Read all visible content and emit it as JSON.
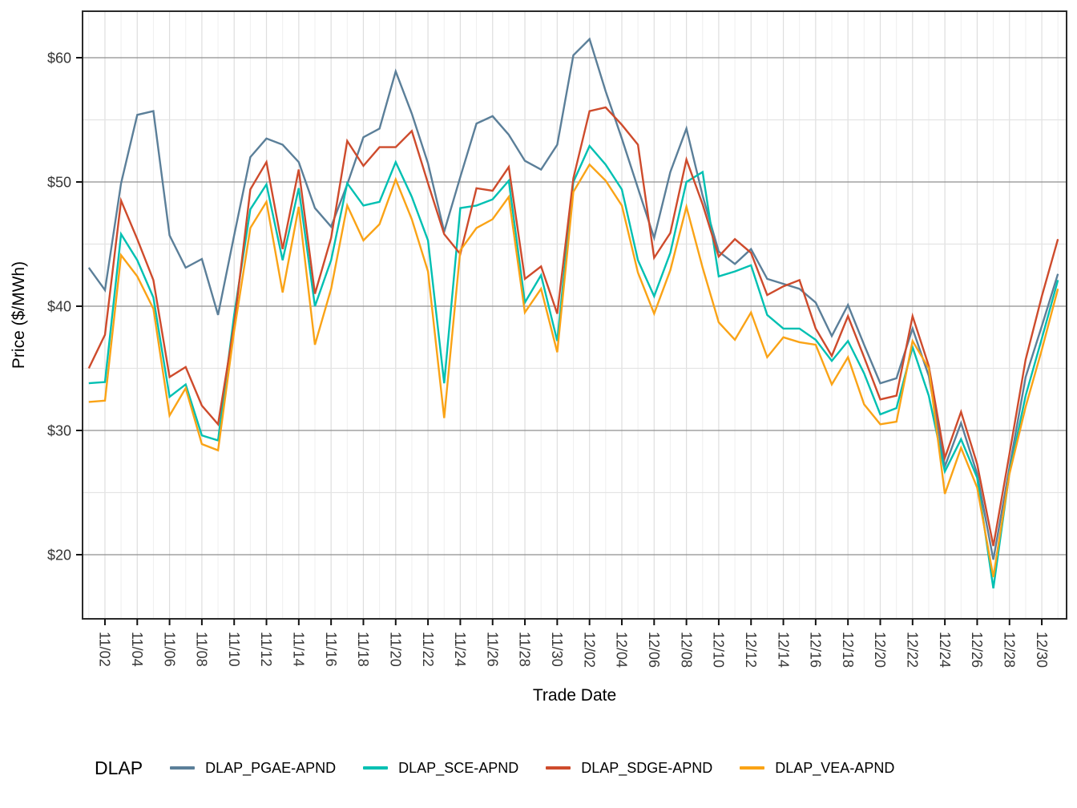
{
  "chart_data": {
    "type": "line",
    "title": "",
    "xlabel": "Trade Date",
    "ylabel": "Price ($/MWh)",
    "grid": "major+minor",
    "ylim": [
      15.3,
      63.7
    ],
    "y_ticks": [
      20,
      30,
      40,
      50,
      60
    ],
    "y_tick_labels": [
      "$20",
      "$30",
      "$40",
      "$50",
      "$60"
    ],
    "y_minor_ticks": [
      25,
      35,
      45,
      55
    ],
    "x": [
      "11/01",
      "11/02",
      "11/03",
      "11/04",
      "11/05",
      "11/06",
      "11/07",
      "11/08",
      "11/09",
      "11/10",
      "11/11",
      "11/12",
      "11/13",
      "11/14",
      "11/15",
      "11/16",
      "11/17",
      "11/18",
      "11/19",
      "11/20",
      "11/21",
      "11/22",
      "11/23",
      "11/24",
      "11/25",
      "11/26",
      "11/27",
      "11/28",
      "11/29",
      "11/30",
      "12/01",
      "12/02",
      "12/03",
      "12/04",
      "12/05",
      "12/06",
      "12/07",
      "12/08",
      "12/09",
      "12/10",
      "12/11",
      "12/12",
      "12/13",
      "12/14",
      "12/15",
      "12/16",
      "12/17",
      "12/18",
      "12/19",
      "12/20",
      "12/21",
      "12/22",
      "12/23",
      "12/24",
      "12/25",
      "12/26",
      "12/27",
      "12/28",
      "12/29",
      "12/30",
      "12/31"
    ],
    "x_tick_labels": [
      "11/02",
      "11/04",
      "11/06",
      "11/08",
      "11/10",
      "11/12",
      "11/14",
      "11/16",
      "11/18",
      "11/20",
      "11/22",
      "11/24",
      "11/26",
      "11/28",
      "11/30",
      "12/02",
      "12/04",
      "12/06",
      "12/08",
      "12/10",
      "12/12",
      "12/14",
      "12/16",
      "12/18",
      "12/20",
      "12/22",
      "12/24",
      "12/26",
      "12/28",
      "12/30"
    ],
    "legend": {
      "title": "DLAP",
      "position": "bottom"
    },
    "series": [
      {
        "name": "DLAP_PGAE-APND",
        "color": "#5B7F99",
        "values": [
          43.1,
          41.3,
          49.9,
          55.4,
          55.7,
          45.7,
          43.1,
          43.8,
          39.3,
          45.7,
          52.0,
          53.5,
          53.0,
          51.6,
          47.9,
          46.4,
          49.8,
          53.6,
          54.3,
          58.9,
          55.5,
          51.5,
          46.0,
          50.4,
          54.7,
          55.3,
          53.8,
          51.7,
          51.0,
          53.0,
          60.2,
          61.5,
          57.3,
          53.5,
          49.5,
          45.5,
          50.8,
          54.3,
          48.9,
          44.4,
          43.4,
          44.6,
          42.2,
          41.8,
          41.4,
          40.3,
          37.6,
          40.1,
          36.9,
          33.8,
          34.2,
          38.2,
          34.4,
          27.1,
          30.6,
          26.5,
          19.6,
          27.0,
          34.3,
          38.4,
          42.6
        ]
      },
      {
        "name": "DLAP_SCE-APND",
        "color": "#00C0B2",
        "values": [
          33.8,
          33.9,
          45.8,
          43.7,
          40.7,
          32.7,
          33.7,
          29.6,
          29.2,
          39.3,
          47.8,
          49.8,
          43.7,
          49.5,
          40.0,
          43.7,
          49.9,
          48.1,
          48.4,
          51.6,
          48.8,
          45.3,
          33.8,
          47.9,
          48.1,
          48.6,
          50.1,
          40.3,
          42.5,
          37.2,
          50.0,
          52.9,
          51.4,
          49.4,
          43.7,
          40.8,
          44.3,
          50.0,
          50.8,
          42.4,
          42.8,
          43.3,
          39.3,
          38.2,
          38.2,
          37.3,
          35.6,
          37.2,
          34.6,
          31.3,
          31.8,
          36.7,
          32.8,
          26.7,
          29.3,
          26.2,
          17.3,
          26.6,
          32.8,
          37.4,
          42.1
        ]
      },
      {
        "name": "DLAP_SDGE-APND",
        "color": "#CE4B2C",
        "values": [
          35.0,
          37.7,
          48.5,
          45.4,
          42.1,
          34.3,
          35.1,
          32.0,
          30.5,
          38.5,
          49.4,
          51.6,
          44.6,
          51.0,
          41.0,
          45.5,
          53.3,
          51.3,
          52.8,
          52.8,
          54.1,
          49.9,
          45.8,
          44.2,
          49.5,
          49.3,
          51.2,
          42.2,
          43.2,
          39.4,
          50.3,
          55.7,
          56.0,
          54.6,
          53.0,
          43.9,
          45.9,
          51.8,
          48.2,
          44.0,
          45.4,
          44.3,
          40.9,
          41.6,
          42.1,
          38.2,
          36.0,
          39.2,
          35.9,
          32.5,
          32.8,
          39.2,
          35.2,
          27.8,
          31.5,
          27.3,
          20.7,
          28.1,
          35.7,
          40.8,
          45.4
        ]
      },
      {
        "name": "DLAP_VEA-APND",
        "color": "#FAA316",
        "values": [
          32.3,
          32.4,
          44.1,
          42.4,
          39.8,
          31.2,
          33.4,
          28.9,
          28.4,
          38.0,
          46.3,
          48.4,
          41.1,
          48.0,
          36.9,
          41.4,
          48.1,
          45.3,
          46.6,
          50.2,
          47.0,
          42.8,
          31.0,
          44.5,
          46.3,
          47.0,
          48.8,
          39.5,
          41.4,
          36.3,
          49.2,
          51.4,
          50.1,
          48.1,
          42.7,
          39.4,
          42.9,
          48.0,
          43.1,
          38.7,
          37.3,
          39.5,
          35.9,
          37.5,
          37.1,
          36.9,
          33.7,
          35.9,
          32.1,
          30.5,
          30.7,
          37.2,
          35.0,
          24.9,
          28.6,
          25.4,
          18.2,
          26.5,
          31.9,
          36.5,
          41.4
        ]
      }
    ]
  }
}
